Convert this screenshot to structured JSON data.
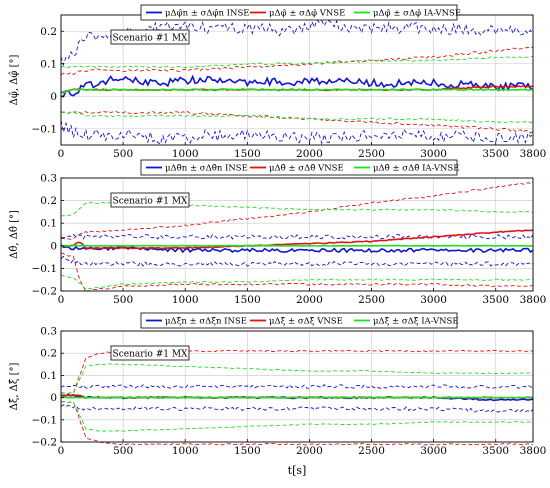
{
  "colors": {
    "ins": "#1414d2",
    "vnse": "#e01414",
    "iavnse": "#1ee01e",
    "grid": "#c8c8c8",
    "frame": "#000000"
  },
  "xlabel": "t[s]",
  "chart_data": [
    {
      "type": "line",
      "panel": "roll",
      "annotation": "Scenario #1 MX",
      "ylabel": "Δφ̂, Δφ̂ [°]",
      "xlim": [
        0,
        3800
      ],
      "ylim": [
        -0.15,
        0.25
      ],
      "xticks": [
        "0",
        "500",
        "1000",
        "1500",
        "2000",
        "2500",
        "3000",
        "3500",
        "3800"
      ],
      "yticks": [
        "−0.1",
        "0",
        "0.1",
        "0.2"
      ],
      "ytick_values": [
        -0.1,
        0,
        0.1,
        0.2
      ],
      "grid": true,
      "legend_position": "top-center",
      "series": [
        {
          "name": "μΔφ̂n ± σΔφ̂n INSE",
          "color_key": "ins",
          "x": [
            0,
            100,
            200,
            400,
            600,
            800,
            1000,
            1200,
            1400,
            1600,
            1800,
            2000,
            2500,
            3000,
            3500,
            3800
          ],
          "mean": [
            0.01,
            0.01,
            0.03,
            0.05,
            0.05,
            0.04,
            0.05,
            0.05,
            0.04,
            0.05,
            0.04,
            0.05,
            0.04,
            0.04,
            0.03,
            0.03
          ],
          "upper": [
            0.11,
            0.13,
            0.18,
            0.19,
            0.2,
            0.21,
            0.22,
            0.21,
            0.21,
            0.21,
            0.2,
            0.22,
            0.21,
            0.21,
            0.2,
            0.2
          ],
          "lower": [
            -0.09,
            -0.11,
            -0.12,
            -0.12,
            -0.12,
            -0.13,
            -0.13,
            -0.12,
            -0.12,
            -0.12,
            -0.12,
            -0.13,
            -0.12,
            -0.12,
            -0.13,
            -0.13
          ]
        },
        {
          "name": "μΔφ̂ ± σΔφ̂ VNSE",
          "color_key": "vnse",
          "x": [
            0,
            100,
            200,
            500,
            1000,
            1500,
            2000,
            2500,
            3000,
            3500,
            3800
          ],
          "mean": [
            0.01,
            0.02,
            0.02,
            0.02,
            0.02,
            0.02,
            0.02,
            0.02,
            0.02,
            0.03,
            0.03
          ],
          "upper": [
            0.07,
            0.07,
            0.08,
            0.08,
            0.08,
            0.09,
            0.1,
            0.11,
            0.12,
            0.14,
            0.15
          ],
          "lower": [
            -0.05,
            -0.05,
            -0.05,
            -0.05,
            -0.05,
            -0.06,
            -0.07,
            -0.08,
            -0.09,
            -0.1,
            -0.11
          ]
        },
        {
          "name": "μΔφ̂ ± σΔφ̂ IA-VNSE",
          "color_key": "iavnse",
          "x": [
            0,
            100,
            200,
            500,
            1000,
            1500,
            2000,
            2500,
            3000,
            3500,
            3800
          ],
          "mean": [
            0.01,
            0.02,
            0.02,
            0.02,
            0.02,
            0.02,
            0.02,
            0.02,
            0.02,
            0.02,
            0.02
          ],
          "upper": [
            0.09,
            0.09,
            0.09,
            0.09,
            0.09,
            0.1,
            0.1,
            0.11,
            0.11,
            0.12,
            0.12
          ],
          "lower": [
            -0.05,
            -0.05,
            -0.06,
            -0.06,
            -0.06,
            -0.06,
            -0.07,
            -0.07,
            -0.07,
            -0.08,
            -0.08
          ]
        }
      ]
    },
    {
      "type": "line",
      "panel": "pitch",
      "annotation": "Scenario #1 MX",
      "ylabel": "Δθ̂, Δθ̂ [°]",
      "xlim": [
        0,
        3800
      ],
      "ylim": [
        -0.2,
        0.3
      ],
      "xticks": [
        "0",
        "500",
        "1000",
        "1500",
        "2000",
        "2500",
        "3000",
        "3500",
        "3800"
      ],
      "yticks": [
        "−0.2",
        "−0.1",
        "0",
        "0.1",
        "0.2",
        "0.3"
      ],
      "ytick_values": [
        -0.2,
        -0.1,
        0,
        0.1,
        0.2,
        0.3
      ],
      "grid": true,
      "legend_position": "top-center",
      "series": [
        {
          "name": "μΔθ̂n ± σΔθ̂n INSE",
          "color_key": "ins",
          "x": [
            0,
            100,
            200,
            500,
            1000,
            1500,
            2000,
            2500,
            3000,
            3500,
            3800
          ],
          "mean": [
            0.0,
            -0.01,
            -0.01,
            -0.01,
            -0.02,
            -0.02,
            -0.02,
            -0.02,
            -0.02,
            -0.02,
            -0.02
          ],
          "upper": [
            0.03,
            0.04,
            0.04,
            0.04,
            0.04,
            0.04,
            0.04,
            0.04,
            0.04,
            0.04,
            0.04
          ],
          "lower": [
            -0.05,
            -0.07,
            -0.08,
            -0.08,
            -0.08,
            -0.08,
            -0.08,
            -0.08,
            -0.08,
            -0.08,
            -0.08
          ]
        },
        {
          "name": "μΔθ̂ ± σΔθ̂ VNSE",
          "color_key": "vnse",
          "x": [
            0,
            100,
            150,
            200,
            500,
            1000,
            1500,
            2000,
            2500,
            3000,
            3500,
            3800
          ],
          "mean": [
            0.0,
            0.0,
            0.02,
            -0.01,
            -0.01,
            -0.01,
            0.0,
            0.01,
            0.02,
            0.04,
            0.06,
            0.07
          ],
          "upper": [
            0.03,
            0.03,
            0.05,
            0.06,
            0.07,
            0.09,
            0.12,
            0.15,
            0.19,
            0.22,
            0.26,
            0.28
          ],
          "lower": [
            -0.03,
            -0.05,
            -0.15,
            -0.2,
            -0.18,
            -0.17,
            -0.17,
            -0.17,
            -0.17,
            -0.17,
            -0.18,
            -0.18
          ]
        },
        {
          "name": "μΔθ̂ ± σΔθ̂ IA-VNSE",
          "color_key": "iavnse",
          "x": [
            0,
            100,
            200,
            500,
            1000,
            1500,
            2000,
            2500,
            3000,
            3500,
            3800
          ],
          "mean": [
            0.0,
            0.0,
            0.0,
            0.0,
            0.0,
            0.0,
            0.0,
            0.0,
            0.0,
            0.0,
            0.0
          ],
          "upper": [
            0.13,
            0.14,
            0.19,
            0.19,
            0.18,
            0.17,
            0.16,
            0.16,
            0.16,
            0.15,
            0.15
          ],
          "lower": [
            -0.13,
            -0.14,
            -0.19,
            -0.17,
            -0.16,
            -0.16,
            -0.15,
            -0.15,
            -0.15,
            -0.15,
            -0.15
          ]
        }
      ]
    },
    {
      "type": "line",
      "panel": "yaw",
      "annotation": "Scenario #1 MX",
      "ylabel": "Δξ̂, Δξ̂ [°]",
      "xlim": [
        0,
        3800
      ],
      "ylim": [
        -0.2,
        0.3
      ],
      "xticks": [
        "0",
        "500",
        "1000",
        "1500",
        "2000",
        "2500",
        "3000",
        "3500",
        "3800"
      ],
      "yticks": [
        "−0.2",
        "−0.1",
        "0",
        "0.1",
        "0.2",
        "0.3"
      ],
      "ytick_values": [
        -0.2,
        -0.1,
        0,
        0.1,
        0.2,
        0.3
      ],
      "grid": true,
      "legend_position": "top-center",
      "series": [
        {
          "name": "μΔξ̂n ± σΔξ̂n INSE",
          "color_key": "ins",
          "x": [
            0,
            100,
            200,
            500,
            1000,
            1500,
            2000,
            2500,
            3000,
            3500,
            3800
          ],
          "mean": [
            0.01,
            0.01,
            0.0,
            0.0,
            0.0,
            0.0,
            0.0,
            0.0,
            0.0,
            -0.01,
            -0.01
          ],
          "upper": [
            0.05,
            0.05,
            0.05,
            0.05,
            0.05,
            0.05,
            0.05,
            0.05,
            0.05,
            0.05,
            0.05
          ],
          "lower": [
            -0.04,
            -0.04,
            -0.05,
            -0.05,
            -0.05,
            -0.05,
            -0.05,
            -0.05,
            -0.05,
            -0.06,
            -0.06
          ]
        },
        {
          "name": "μΔξ̂ ± σΔξ̂ VNSE",
          "color_key": "vnse",
          "x": [
            0,
            100,
            150,
            200,
            300,
            500,
            1000,
            1500,
            2000,
            2500,
            3000,
            3500,
            3800
          ],
          "mean": [
            0.01,
            0.01,
            0.01,
            0.0,
            0.0,
            0.0,
            0.0,
            0.0,
            0.0,
            0.0,
            0.0,
            0.0,
            0.0
          ],
          "upper": [
            0.02,
            0.02,
            0.1,
            0.18,
            0.2,
            0.21,
            0.21,
            0.21,
            0.21,
            0.21,
            0.21,
            0.21,
            0.21
          ],
          "lower": [
            -0.02,
            -0.02,
            -0.1,
            -0.18,
            -0.2,
            -0.21,
            -0.21,
            -0.21,
            -0.21,
            -0.21,
            -0.21,
            -0.21,
            -0.21
          ]
        },
        {
          "name": "μΔξ̂ ± σΔξ̂ IA-VNSE",
          "color_key": "iavnse",
          "x": [
            0,
            100,
            150,
            200,
            300,
            500,
            1000,
            1500,
            2000,
            2500,
            3000,
            3500,
            3800
          ],
          "mean": [
            0.0,
            0.0,
            0.0,
            0.0,
            0.0,
            0.0,
            0.0,
            0.0,
            0.0,
            0.0,
            0.0,
            0.0,
            0.0
          ],
          "upper": [
            0.02,
            0.02,
            0.08,
            0.14,
            0.15,
            0.15,
            0.14,
            0.13,
            0.12,
            0.12,
            0.11,
            0.11,
            0.11
          ],
          "lower": [
            -0.02,
            -0.02,
            -0.08,
            -0.14,
            -0.15,
            -0.15,
            -0.14,
            -0.13,
            -0.12,
            -0.12,
            -0.11,
            -0.11,
            -0.11
          ]
        }
      ]
    }
  ]
}
